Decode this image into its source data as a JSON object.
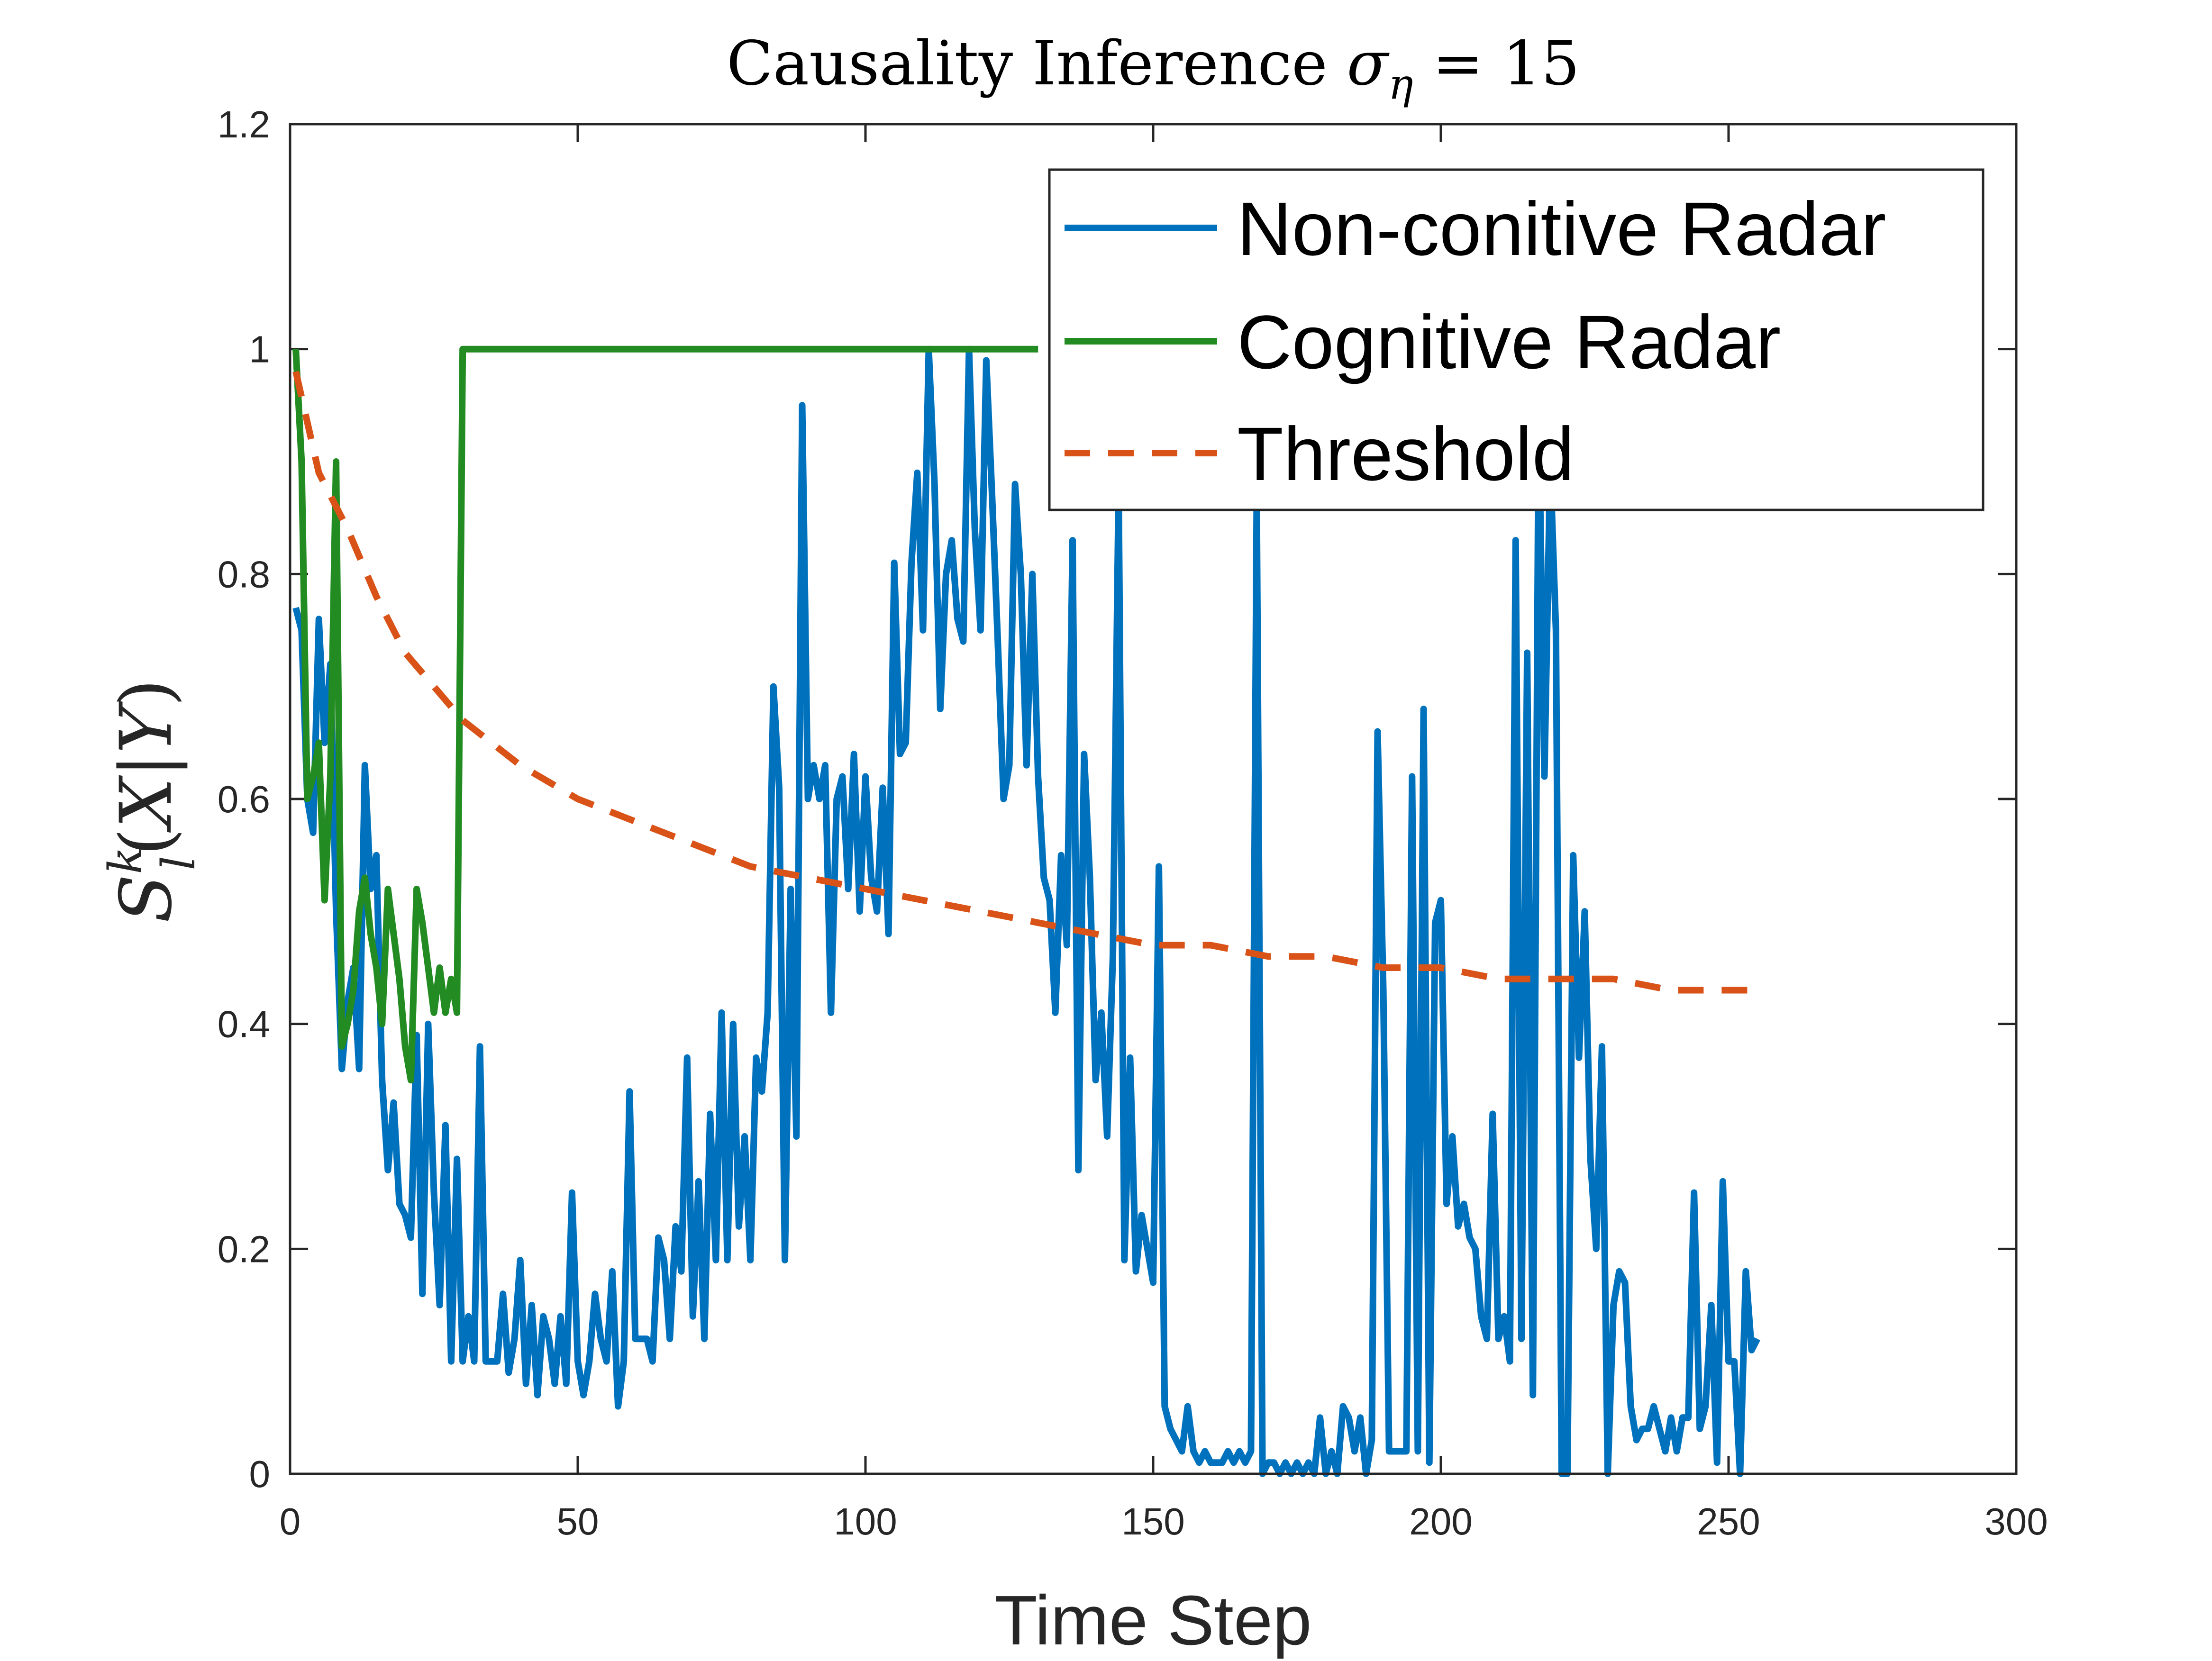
{
  "chart_data": {
    "type": "line",
    "title": {
      "prefix": "Causality Inference ",
      "symbol": "σ",
      "subscript": "η",
      "suffix": " = 15"
    },
    "xlabel": "Time Step",
    "ylabel": {
      "S": "S",
      "sup": "k",
      "sub": "l",
      "open": "(",
      "X": "X",
      "bar": "|",
      "Y": "Y",
      "close": ")"
    },
    "xlim": [
      0,
      300
    ],
    "ylim": [
      0,
      1.2
    ],
    "xticks": [
      "0",
      "50",
      "100",
      "150",
      "200",
      "250",
      "300"
    ],
    "yticks": [
      "0",
      "0.2",
      "0.4",
      "0.6",
      "0.8",
      "1",
      "1.2"
    ],
    "xtick_values": [
      0,
      50,
      100,
      150,
      200,
      250,
      300
    ],
    "ytick_values": [
      0,
      0.2,
      0.4,
      0.6,
      0.8,
      1.0,
      1.2
    ],
    "grid": false,
    "legend_position": "top-right",
    "series": [
      {
        "name": "Non-conitive Radar",
        "color": "#0072BD",
        "style": "solid",
        "points": [
          [
            1,
            0.77
          ],
          [
            2,
            0.75
          ],
          [
            3,
            0.6
          ],
          [
            4,
            0.57
          ],
          [
            5,
            0.76
          ],
          [
            6,
            0.65
          ],
          [
            7,
            0.72
          ],
          [
            8,
            0.5
          ],
          [
            9,
            0.36
          ],
          [
            10,
            0.42
          ],
          [
            11,
            0.45
          ],
          [
            12,
            0.36
          ],
          [
            13,
            0.63
          ],
          [
            14,
            0.52
          ],
          [
            15,
            0.55
          ],
          [
            16,
            0.35
          ],
          [
            17,
            0.27
          ],
          [
            18,
            0.33
          ],
          [
            19,
            0.24
          ],
          [
            20,
            0.23
          ],
          [
            21,
            0.21
          ],
          [
            22,
            0.39
          ],
          [
            23,
            0.16
          ],
          [
            24,
            0.4
          ],
          [
            25,
            0.25
          ],
          [
            26,
            0.15
          ],
          [
            27,
            0.31
          ],
          [
            28,
            0.1
          ],
          [
            29,
            0.28
          ],
          [
            30,
            0.1
          ],
          [
            31,
            0.14
          ],
          [
            32,
            0.1
          ],
          [
            33,
            0.38
          ],
          [
            34,
            0.1
          ],
          [
            35,
            0.1
          ],
          [
            36,
            0.1
          ],
          [
            37,
            0.16
          ],
          [
            38,
            0.09
          ],
          [
            39,
            0.12
          ],
          [
            40,
            0.19
          ],
          [
            41,
            0.08
          ],
          [
            42,
            0.15
          ],
          [
            43,
            0.07
          ],
          [
            44,
            0.14
          ],
          [
            45,
            0.12
          ],
          [
            46,
            0.08
          ],
          [
            47,
            0.14
          ],
          [
            48,
            0.08
          ],
          [
            49,
            0.25
          ],
          [
            50,
            0.1
          ],
          [
            51,
            0.07
          ],
          [
            52,
            0.1
          ],
          [
            53,
            0.16
          ],
          [
            54,
            0.12
          ],
          [
            55,
            0.1
          ],
          [
            56,
            0.18
          ],
          [
            57,
            0.06
          ],
          [
            58,
            0.1
          ],
          [
            59,
            0.34
          ],
          [
            60,
            0.12
          ],
          [
            61,
            0.12
          ],
          [
            62,
            0.12
          ],
          [
            63,
            0.1
          ],
          [
            64,
            0.21
          ],
          [
            65,
            0.19
          ],
          [
            66,
            0.12
          ],
          [
            67,
            0.22
          ],
          [
            68,
            0.18
          ],
          [
            69,
            0.37
          ],
          [
            70,
            0.14
          ],
          [
            71,
            0.26
          ],
          [
            72,
            0.12
          ],
          [
            73,
            0.32
          ],
          [
            74,
            0.19
          ],
          [
            75,
            0.41
          ],
          [
            76,
            0.19
          ],
          [
            77,
            0.4
          ],
          [
            78,
            0.22
          ],
          [
            79,
            0.3
          ],
          [
            80,
            0.19
          ],
          [
            81,
            0.37
          ],
          [
            82,
            0.34
          ],
          [
            83,
            0.41
          ],
          [
            84,
            0.7
          ],
          [
            85,
            0.61
          ],
          [
            86,
            0.19
          ],
          [
            87,
            0.52
          ],
          [
            88,
            0.3
          ],
          [
            89,
            0.95
          ],
          [
            90,
            0.6
          ],
          [
            91,
            0.63
          ],
          [
            92,
            0.6
          ],
          [
            93,
            0.63
          ],
          [
            94,
            0.41
          ],
          [
            95,
            0.6
          ],
          [
            96,
            0.62
          ],
          [
            97,
            0.52
          ],
          [
            98,
            0.64
          ],
          [
            99,
            0.5
          ],
          [
            100,
            0.62
          ],
          [
            101,
            0.53
          ],
          [
            102,
            0.5
          ],
          [
            103,
            0.61
          ],
          [
            104,
            0.48
          ],
          [
            105,
            0.81
          ],
          [
            106,
            0.64
          ],
          [
            107,
            0.65
          ],
          [
            108,
            0.81
          ],
          [
            109,
            0.89
          ],
          [
            110,
            0.75
          ],
          [
            111,
            1.0
          ],
          [
            112,
            0.88
          ],
          [
            113,
            0.68
          ],
          [
            114,
            0.8
          ],
          [
            115,
            0.83
          ],
          [
            116,
            0.76
          ],
          [
            117,
            0.74
          ],
          [
            118,
            1.0
          ],
          [
            119,
            0.84
          ],
          [
            120,
            0.75
          ],
          [
            121,
            0.99
          ],
          [
            122,
            0.87
          ],
          [
            123,
            0.74
          ],
          [
            124,
            0.6
          ],
          [
            125,
            0.63
          ],
          [
            126,
            0.88
          ],
          [
            127,
            0.8
          ],
          [
            128,
            0.63
          ],
          [
            129,
            0.8
          ],
          [
            130,
            0.62
          ],
          [
            131,
            0.53
          ],
          [
            132,
            0.51
          ],
          [
            133,
            0.41
          ],
          [
            134,
            0.55
          ],
          [
            135,
            0.47
          ],
          [
            136,
            0.83
          ],
          [
            137,
            0.27
          ],
          [
            138,
            0.64
          ],
          [
            139,
            0.53
          ],
          [
            140,
            0.35
          ],
          [
            141,
            0.41
          ],
          [
            142,
            0.3
          ],
          [
            143,
            0.46
          ],
          [
            144,
            0.88
          ],
          [
            145,
            0.19
          ],
          [
            146,
            0.37
          ],
          [
            147,
            0.18
          ],
          [
            148,
            0.23
          ],
          [
            149,
            0.2
          ],
          [
            150,
            0.17
          ],
          [
            151,
            0.54
          ],
          [
            152,
            0.06
          ],
          [
            153,
            0.04
          ],
          [
            154,
            0.03
          ],
          [
            155,
            0.02
          ],
          [
            156,
            0.06
          ],
          [
            157,
            0.02
          ],
          [
            158,
            0.01
          ],
          [
            159,
            0.02
          ],
          [
            160,
            0.01
          ],
          [
            161,
            0.01
          ],
          [
            162,
            0.01
          ],
          [
            163,
            0.02
          ],
          [
            164,
            0.01
          ],
          [
            165,
            0.02
          ],
          [
            166,
            0.01
          ],
          [
            167,
            0.02
          ],
          [
            168,
            0.87
          ],
          [
            169,
            0.0
          ],
          [
            170,
            0.01
          ],
          [
            171,
            0.01
          ],
          [
            172,
            0.0
          ],
          [
            173,
            0.01
          ],
          [
            174,
            0.0
          ],
          [
            175,
            0.01
          ],
          [
            176,
            0.0
          ],
          [
            177,
            0.01
          ],
          [
            178,
            0.0
          ],
          [
            179,
            0.05
          ],
          [
            180,
            0.0
          ],
          [
            181,
            0.02
          ],
          [
            182,
            0.0
          ],
          [
            183,
            0.06
          ],
          [
            184,
            0.05
          ],
          [
            185,
            0.02
          ],
          [
            186,
            0.05
          ],
          [
            187,
            0.0
          ],
          [
            188,
            0.03
          ],
          [
            189,
            0.66
          ],
          [
            190,
            0.43
          ],
          [
            191,
            0.02
          ],
          [
            192,
            0.02
          ],
          [
            193,
            0.02
          ],
          [
            194,
            0.02
          ],
          [
            195,
            0.62
          ],
          [
            196,
            0.02
          ],
          [
            197,
            0.68
          ],
          [
            198,
            0.01
          ],
          [
            199,
            0.49
          ],
          [
            200,
            0.51
          ],
          [
            201,
            0.24
          ],
          [
            202,
            0.3
          ],
          [
            203,
            0.22
          ],
          [
            204,
            0.24
          ],
          [
            205,
            0.21
          ],
          [
            206,
            0.2
          ],
          [
            207,
            0.14
          ],
          [
            208,
            0.12
          ],
          [
            209,
            0.32
          ],
          [
            210,
            0.12
          ],
          [
            211,
            0.14
          ],
          [
            212,
            0.1
          ],
          [
            213,
            0.83
          ],
          [
            214,
            0.12
          ],
          [
            215,
            0.73
          ],
          [
            216,
            0.07
          ],
          [
            217,
            0.95
          ],
          [
            218,
            0.62
          ],
          [
            219,
            0.9
          ],
          [
            220,
            0.75
          ],
          [
            221,
            0.0
          ],
          [
            222,
            0.0
          ],
          [
            223,
            0.55
          ],
          [
            224,
            0.37
          ],
          [
            225,
            0.5
          ],
          [
            226,
            0.28
          ],
          [
            227,
            0.2
          ],
          [
            228,
            0.38
          ],
          [
            229,
            0.0
          ],
          [
            230,
            0.15
          ],
          [
            231,
            0.18
          ],
          [
            232,
            0.17
          ],
          [
            233,
            0.06
          ],
          [
            234,
            0.03
          ],
          [
            235,
            0.04
          ],
          [
            236,
            0.04
          ],
          [
            237,
            0.06
          ],
          [
            238,
            0.04
          ],
          [
            239,
            0.02
          ],
          [
            240,
            0.05
          ],
          [
            241,
            0.02
          ],
          [
            242,
            0.05
          ],
          [
            243,
            0.05
          ],
          [
            244,
            0.25
          ],
          [
            245,
            0.04
          ],
          [
            246,
            0.06
          ],
          [
            247,
            0.15
          ],
          [
            248,
            0.01
          ],
          [
            249,
            0.26
          ],
          [
            250,
            0.1
          ],
          [
            251,
            0.1
          ],
          [
            252,
            0.0
          ],
          [
            253,
            0.18
          ],
          [
            254,
            0.11
          ],
          [
            255,
            0.12
          ]
        ]
      },
      {
        "name": "Cognitive Radar",
        "color": "#228B22",
        "style": "solid",
        "points": [
          [
            1,
            1.0
          ],
          [
            2,
            0.9
          ],
          [
            3,
            0.6
          ],
          [
            4,
            0.62
          ],
          [
            5,
            0.65
          ],
          [
            6,
            0.51
          ],
          [
            7,
            0.62
          ],
          [
            8,
            0.9
          ],
          [
            9,
            0.38
          ],
          [
            10,
            0.4
          ],
          [
            11,
            0.43
          ],
          [
            12,
            0.5
          ],
          [
            13,
            0.53
          ],
          [
            14,
            0.48
          ],
          [
            15,
            0.45
          ],
          [
            16,
            0.4
          ],
          [
            17,
            0.52
          ],
          [
            18,
            0.48
          ],
          [
            19,
            0.44
          ],
          [
            20,
            0.38
          ],
          [
            21,
            0.35
          ],
          [
            22,
            0.52
          ],
          [
            23,
            0.49
          ],
          [
            24,
            0.45
          ],
          [
            25,
            0.41
          ],
          [
            26,
            0.45
          ],
          [
            27,
            0.41
          ],
          [
            28,
            0.44
          ],
          [
            29,
            0.41
          ],
          [
            30,
            1.0
          ],
          [
            31,
            1.0
          ],
          [
            50,
            1.0
          ],
          [
            100,
            1.0
          ],
          [
            130,
            1.0
          ]
        ]
      },
      {
        "name": "Threshold",
        "color": "#D95319",
        "style": "dashed",
        "points": [
          [
            1,
            0.98
          ],
          [
            5,
            0.89
          ],
          [
            10,
            0.84
          ],
          [
            15,
            0.78
          ],
          [
            20,
            0.73
          ],
          [
            25,
            0.7
          ],
          [
            30,
            0.67
          ],
          [
            40,
            0.63
          ],
          [
            50,
            0.6
          ],
          [
            60,
            0.58
          ],
          [
            70,
            0.56
          ],
          [
            80,
            0.54
          ],
          [
            90,
            0.53
          ],
          [
            100,
            0.52
          ],
          [
            110,
            0.51
          ],
          [
            120,
            0.5
          ],
          [
            130,
            0.49
          ],
          [
            140,
            0.48
          ],
          [
            150,
            0.47
          ],
          [
            160,
            0.47
          ],
          [
            170,
            0.46
          ],
          [
            180,
            0.46
          ],
          [
            190,
            0.45
          ],
          [
            200,
            0.45
          ],
          [
            210,
            0.44
          ],
          [
            220,
            0.44
          ],
          [
            230,
            0.44
          ],
          [
            240,
            0.43
          ],
          [
            250,
            0.43
          ],
          [
            255,
            0.43
          ]
        ]
      }
    ]
  }
}
